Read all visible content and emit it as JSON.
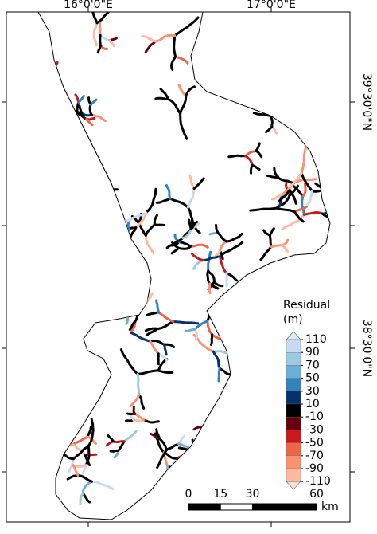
{
  "map": {
    "x_labels": [
      "16°0'0\"E",
      "17°0'0\"E"
    ],
    "y_labels": [
      "39°30'0\"N",
      "38°30'0\"N"
    ],
    "legend": {
      "title": [
        "Residual",
        "(m)"
      ],
      "labels": [
        110,
        90,
        70,
        50,
        30,
        10,
        -10,
        -30,
        -50,
        -70,
        -90,
        -110
      ],
      "colors": [
        "#c6dbef",
        "#9ecae1",
        "#6baed6",
        "#3182bd",
        "#08306b",
        "#000000",
        "#67000d",
        "#cb181d",
        "#ef6548",
        "#fc9272",
        "#fcbba1"
      ],
      "over_color": "#deebf7",
      "under_color": "#fee0d2"
    },
    "scale_bar": {
      "ticks": [
        0,
        15,
        30,
        60
      ],
      "unit": "km"
    }
  }
}
